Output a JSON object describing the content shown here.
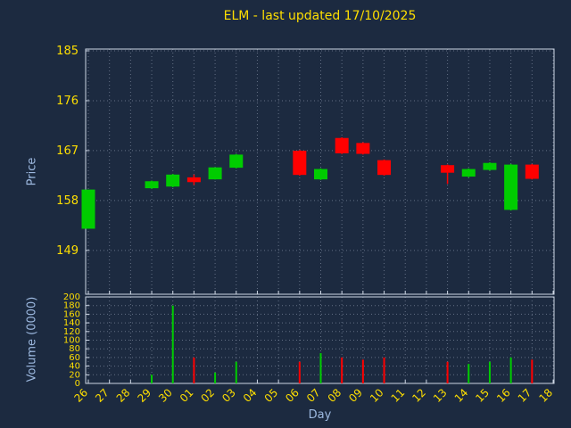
{
  "title": "ELM - last updated 17/10/2025",
  "colors": {
    "background": "#1c2a40",
    "border": "#cdd6e4",
    "grid": "#aab4c8",
    "tick_label": "#ffdf00",
    "title": "#ffdf00",
    "axis_label": "#9db9e0",
    "up": "#00cc00",
    "down": "#ff0000"
  },
  "chart_data": [
    {
      "type": "candlestick",
      "title": "ELM - last updated 17/10/2025",
      "xlabel": "Day",
      "ylabel": "Price",
      "ylim": [
        141.1,
        185
      ],
      "yticks": [
        149,
        158,
        167,
        176,
        185
      ],
      "grid": true,
      "categories": [
        "26",
        "27",
        "28",
        "29",
        "30",
        "01",
        "02",
        "03",
        "04",
        "05",
        "06",
        "07",
        "08",
        "09",
        "10",
        "11",
        "12",
        "13",
        "14",
        "15",
        "16",
        "17",
        "18"
      ],
      "candles": [
        {
          "x": "26",
          "open": 153.0,
          "close": 159.9,
          "low": 153.0,
          "high": 159.9
        },
        {
          "x": "29",
          "open": 160.3,
          "close": 161.4,
          "low": 160.1,
          "high": 161.6
        },
        {
          "x": "30",
          "open": 160.6,
          "close": 162.6,
          "low": 160.4,
          "high": 162.8
        },
        {
          "x": "01",
          "open": 162.1,
          "close": 161.4,
          "low": 160.8,
          "high": 162.7
        },
        {
          "x": "02",
          "open": 161.9,
          "close": 163.9,
          "low": 161.8,
          "high": 164.0
        },
        {
          "x": "03",
          "open": 164.0,
          "close": 166.2,
          "low": 163.8,
          "high": 166.4
        },
        {
          "x": "06",
          "open": 166.9,
          "close": 162.7,
          "low": 162.5,
          "high": 167.1
        },
        {
          "x": "07",
          "open": 161.9,
          "close": 163.6,
          "low": 161.7,
          "high": 163.8
        },
        {
          "x": "08",
          "open": 169.2,
          "close": 166.6,
          "low": 166.4,
          "high": 169.4
        },
        {
          "x": "09",
          "open": 168.3,
          "close": 166.5,
          "low": 166.3,
          "high": 168.5
        },
        {
          "x": "10",
          "open": 165.2,
          "close": 162.7,
          "low": 162.5,
          "high": 165.4
        },
        {
          "x": "13",
          "open": 164.3,
          "close": 163.1,
          "low": 161.0,
          "high": 164.5
        },
        {
          "x": "14",
          "open": 162.4,
          "close": 163.6,
          "low": 162.2,
          "high": 163.8
        },
        {
          "x": "15",
          "open": 163.6,
          "close": 164.7,
          "low": 163.4,
          "high": 164.9
        },
        {
          "x": "16",
          "open": 156.4,
          "close": 164.4,
          "low": 156.2,
          "high": 164.6
        },
        {
          "x": "17",
          "open": 164.4,
          "close": 162.0,
          "low": 161.8,
          "high": 164.6
        }
      ]
    },
    {
      "type": "bar",
      "ylabel": "Volume (0000)",
      "ylim": [
        0,
        200
      ],
      "yticks": [
        0,
        20,
        40,
        60,
        80,
        100,
        120,
        140,
        160,
        180,
        200
      ],
      "grid": true,
      "categories": [
        "26",
        "27",
        "28",
        "29",
        "30",
        "01",
        "02",
        "03",
        "04",
        "05",
        "06",
        "07",
        "08",
        "09",
        "10",
        "11",
        "12",
        "13",
        "14",
        "15",
        "16",
        "17",
        "18"
      ],
      "bars": [
        {
          "x": "29",
          "value": 20,
          "dir": "up"
        },
        {
          "x": "30",
          "value": 180,
          "dir": "up"
        },
        {
          "x": "01",
          "value": 60,
          "dir": "down"
        },
        {
          "x": "02",
          "value": 25,
          "dir": "up"
        },
        {
          "x": "03",
          "value": 50,
          "dir": "up"
        },
        {
          "x": "06",
          "value": 50,
          "dir": "down"
        },
        {
          "x": "07",
          "value": 70,
          "dir": "up"
        },
        {
          "x": "08",
          "value": 60,
          "dir": "down"
        },
        {
          "x": "09",
          "value": 55,
          "dir": "down"
        },
        {
          "x": "10",
          "value": 60,
          "dir": "down"
        },
        {
          "x": "13",
          "value": 50,
          "dir": "down"
        },
        {
          "x": "14",
          "value": 45,
          "dir": "up"
        },
        {
          "x": "15",
          "value": 50,
          "dir": "up"
        },
        {
          "x": "16",
          "value": 60,
          "dir": "up"
        },
        {
          "x": "17",
          "value": 55,
          "dir": "down"
        }
      ]
    }
  ]
}
